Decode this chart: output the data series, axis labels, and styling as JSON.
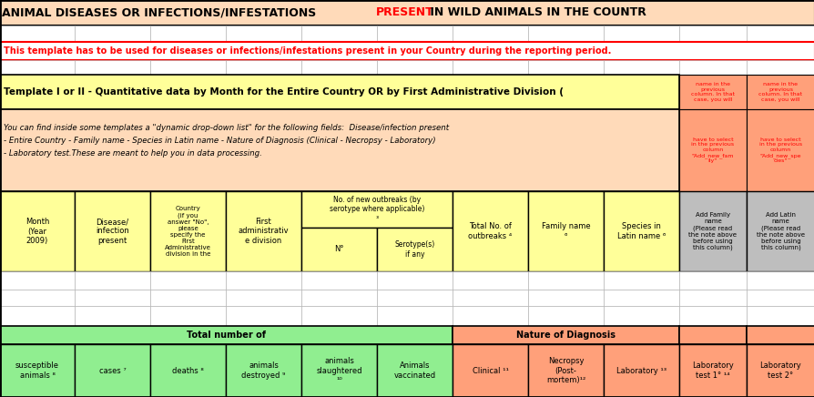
{
  "title_black1": "ANIMAL DISEASES OR INFECTIONS/INFESTATIONS ",
  "title_red": "PRESENT",
  "title_black2": " IN WILD ANIMALS IN THE COUNTR",
  "warning_text": "This template has to be used for diseases or infections/infestations present in your Country during the reporting period.",
  "template_title": "Template I or II - Quantitative data by Month for the Entire Country OR by First Administrative Division (",
  "info_line1": "You can find inside some templates a \"dynamic drop-down list\" for the following fields:  Disease/infection present",
  "info_line2": "- Entire Country - Family name - Species in Latin name - Nature of Diagnosis (Clinical - Necropsy - Laboratory)",
  "info_line3": "- Laboratory test.These are meant to help you in data processing.",
  "note_col1_top": "name in the\nprevious\ncolumn. In that\ncase, you will",
  "note_col1_bot": "have to select\nin the previous\ncolumn\n\"Add_new_fam\nily\"",
  "note_col2_top": "name in the\nprevious\ncolumn. In that\ncase, you will",
  "note_col2_bot": "have to select\nin the previous\ncolumn\n\"Add_new_spe\ncies\"",
  "col_month": "Month\n(Year\n2009)",
  "col_disease": "Disease/\ninfection\npresent",
  "col_country": "Country\n(if you\nanswer \"No\",\nplease\nspecify the\nFirst\nAdministrative\ndivision in the",
  "col_first_admin": "First\nadministrativ\ne division",
  "col_outbreaks_header": "No. of new outbreaks (by\nserotype where applicable)\n³",
  "col_N": "N°",
  "col_serotype": "Serotype(s)\nif any",
  "col_total": "Total No. of\noutbreaks ⁴",
  "col_family": "Family name\n⁶",
  "col_species": "Species in\nLatin name ⁶",
  "col_add_family": "Add Family\nname\n(Please read\nthe note above\nbefore using\nthis column)",
  "col_add_latin": "Add Latin\nname\n(Please read\nthe note above\nbefore using\nthis column)",
  "bottom_total_header": "Total number of",
  "bottom_nature_header": "Nature of Diagnosis",
  "col_susceptible": "susceptible\nanimals ⁸",
  "col_cases": "cases ⁷",
  "col_deaths": "deaths ⁸",
  "col_destroyed": "animals\ndestroyed ⁹",
  "col_slaughtered": "animals\nslaughtered\n¹⁰",
  "col_vaccinated": "Animals\nvaccinated",
  "col_clinical": "Clinical ¹¹",
  "col_necropsy": "Necropsy\n(Post-\nmortem)¹²",
  "col_laboratory": "Laboratory ¹³",
  "col_lab_test1": "Laboratory\ntest 1° ¹⁴",
  "col_lab_test2": "Laboratory\ntest 2°",
  "bg_peach": "#FFDAB9",
  "bg_yellow": "#FFFF99",
  "bg_green": "#90EE90",
  "bg_salmon": "#FFA07A",
  "bg_white": "#FFFFFF",
  "bg_gray": "#BEBEBE",
  "text_red": "#FF0000",
  "text_black": "#000000"
}
